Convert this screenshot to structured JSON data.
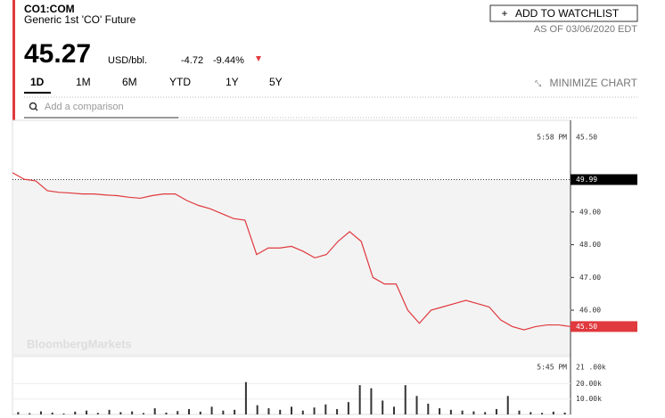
{
  "header": {
    "ticker": "CO1:COM",
    "name": "Generic 1st 'CO' Future",
    "price": "45.27",
    "unit": "USD/bbl.",
    "change": "-4.72",
    "change_pct": "-9.44%",
    "watchlist": "ADD TO WATCHLIST",
    "as_of": "AS OF 03/06/2020 EDT",
    "minimize": "MINIMIZE CHART",
    "tabs": [
      "1D",
      "1M",
      "6M",
      "YTD",
      "1Y",
      "5Y"
    ],
    "search_placeholder": "Add a comparison",
    "watermark": "BloombergMarkets"
  },
  "chart_data": [
    {
      "type": "line",
      "color": "#e0393e",
      "values": [
        50.2,
        50.0,
        49.95,
        49.65,
        49.6,
        49.58,
        49.55,
        49.55,
        49.52,
        49.5,
        49.45,
        49.42,
        49.5,
        49.55,
        49.55,
        49.35,
        49.2,
        49.1,
        48.95,
        48.8,
        48.75,
        47.7,
        47.9,
        47.9,
        47.95,
        47.8,
        47.6,
        47.7,
        48.1,
        48.4,
        48.1,
        47.0,
        46.8,
        46.8,
        46.0,
        45.6,
        46.0,
        46.1,
        46.2,
        46.3,
        46.2,
        46.1,
        45.7,
        45.5,
        45.4,
        45.5,
        45.55,
        45.55,
        45.5
      ],
      "ylim": [
        44.64,
        51.8
      ],
      "yticks": [
        {
          "value": 49,
          "label": "49.00"
        },
        {
          "value": 48,
          "label": "48.00"
        },
        {
          "value": 47,
          "label": "47.00"
        },
        {
          "value": 46,
          "label": "46.00"
        }
      ],
      "reference": {
        "value": 49.99,
        "label": "49.99"
      },
      "last": {
        "value": 45.5,
        "label": "45.50"
      },
      "time_label": "5:58 PM",
      "top_label": "45.50"
    },
    {
      "type": "bar",
      "color": "#333333",
      "values": [
        1500,
        800,
        2000,
        1200,
        600,
        1800,
        2500,
        1000,
        3000,
        1500,
        2000,
        900,
        4000,
        1200,
        2200,
        3500,
        1800,
        5000,
        2500,
        3000,
        21000,
        6000,
        4000,
        3000,
        5000,
        2500,
        4500,
        6500,
        3500,
        8000,
        19000,
        17000,
        9000,
        5000,
        19000,
        12000,
        7000,
        4000,
        3000,
        2500,
        2000,
        1500,
        3500,
        12000,
        2500,
        1500,
        1000,
        1800,
        1200
      ],
      "ylim": [
        0,
        37600
      ],
      "yticks": [
        {
          "value": 20000,
          "label": "20.00k"
        },
        {
          "value": 10000,
          "label": "10.00k"
        }
      ],
      "time_label": "5:45 PM",
      "top_label": "21 .00k"
    }
  ]
}
